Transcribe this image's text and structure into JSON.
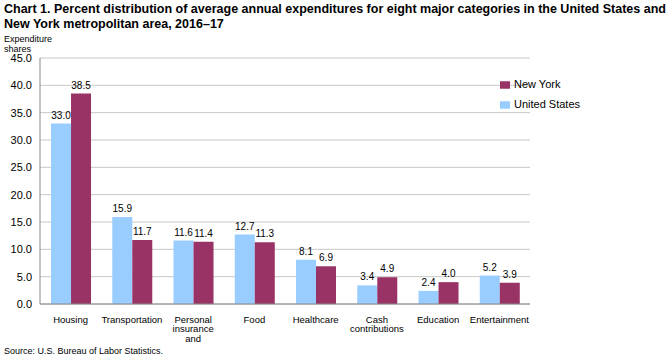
{
  "chart_data": {
    "type": "bar",
    "title": "Chart 1. Percent distribution of average annual expenditures for eight major categories in the United States and New York metropolitan area, 2016–17",
    "y_label": "Expenditure shares",
    "source": "Source: U.S. Bureau of Labor Statistics.",
    "categories": [
      "Housing",
      "Transportation",
      "Personal insurance and pensions",
      "Food",
      "Healthcare",
      "Cash contributions",
      "Education",
      "Entertainment"
    ],
    "series": [
      {
        "name": "United States",
        "color": "#99ccff",
        "values": [
          33.0,
          15.9,
          11.6,
          12.7,
          8.1,
          3.4,
          2.4,
          5.2
        ],
        "value_labels": [
          "33.0",
          "15.9",
          "11.6",
          "12.7",
          "8.1",
          "3.4",
          "2.4",
          "5.2"
        ]
      },
      {
        "name": "New York",
        "color": "#993366",
        "values": [
          38.5,
          11.7,
          11.4,
          11.3,
          6.9,
          4.9,
          4.0,
          3.9
        ],
        "value_labels": [
          "38.5",
          "11.7",
          "11.4",
          "11.3",
          "6.9",
          "4.9",
          "4.0",
          "3.9"
        ]
      }
    ],
    "ylim": [
      0,
      45
    ],
    "yticks": [
      {
        "value": 0,
        "label": "0.0"
      },
      {
        "value": 5,
        "label": "5.0"
      },
      {
        "value": 10,
        "label": "10.0"
      },
      {
        "value": 15,
        "label": "15.0"
      },
      {
        "value": 20,
        "label": "20.0"
      },
      {
        "value": 25,
        "label": "25.0"
      },
      {
        "value": 30,
        "label": "30.0"
      },
      {
        "value": 35,
        "label": "35.0"
      },
      {
        "value": 40,
        "label": "40.0"
      },
      {
        "value": 45,
        "label": "45.0"
      }
    ],
    "grid": true,
    "legend": "upper right",
    "data_labels": true
  }
}
